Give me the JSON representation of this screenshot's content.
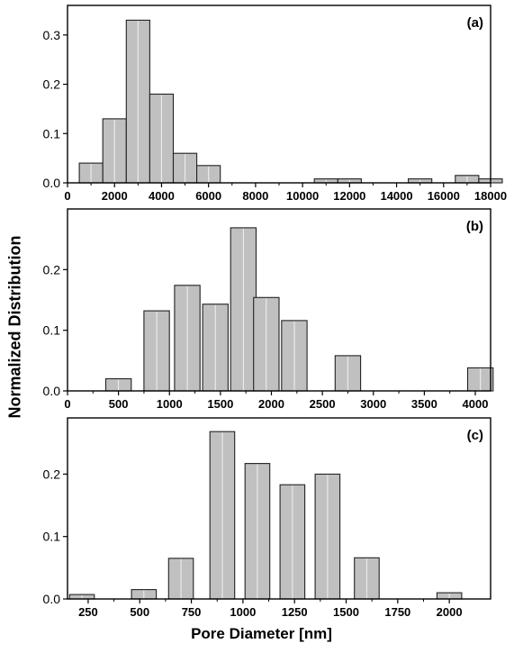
{
  "figure": {
    "ylabel": "Normalized Distribution",
    "xlabel": "Pore Diameter [nm]"
  },
  "chart_data": [
    {
      "type": "bar",
      "panel_label": "(a)",
      "bin_width": 1000,
      "x": [
        1000,
        2000,
        3000,
        4000,
        5000,
        6000,
        11000,
        12000,
        15000,
        17000,
        18000
      ],
      "values": [
        0.04,
        0.13,
        0.33,
        0.18,
        0.06,
        0.035,
        0.008,
        0.008,
        0.008,
        0.015,
        0.008
      ],
      "xlim": [
        0,
        18000
      ],
      "ylim": [
        0,
        0.36
      ],
      "xticks": [
        0,
        2000,
        4000,
        6000,
        8000,
        10000,
        12000,
        14000,
        16000,
        18000
      ],
      "yticks": [
        0.0,
        0.1,
        0.2,
        0.3
      ],
      "ytick_labels": [
        "0.0",
        "0.1",
        "0.2",
        "0.3"
      ],
      "grid": false,
      "legend": "none"
    },
    {
      "type": "bar",
      "panel_label": "(b)",
      "bin_width": 250,
      "x": [
        500,
        875,
        1175,
        1450,
        1725,
        1950,
        2225,
        2750,
        4050
      ],
      "values": [
        0.02,
        0.132,
        0.174,
        0.143,
        0.269,
        0.154,
        0.116,
        0.058,
        0.038
      ],
      "xlim": [
        0,
        4150
      ],
      "ylim": [
        0,
        0.3
      ],
      "xticks": [
        0,
        500,
        1000,
        1500,
        2000,
        2500,
        3000,
        3500,
        4000
      ],
      "yticks": [
        0.0,
        0.1,
        0.2
      ],
      "ytick_labels": [
        "0.0",
        "0.1",
        "0.2"
      ],
      "grid": false,
      "legend": "none"
    },
    {
      "type": "bar",
      "panel_label": "(c)",
      "bin_width": 120,
      "x": [
        220,
        520,
        700,
        900,
        1070,
        1240,
        1410,
        1600,
        2000
      ],
      "values": [
        0.007,
        0.015,
        0.065,
        0.268,
        0.217,
        0.183,
        0.2,
        0.066,
        0.01
      ],
      "xlim": [
        150,
        2200
      ],
      "ylim": [
        0,
        0.29
      ],
      "xticks": [
        250,
        500,
        750,
        1000,
        1250,
        1500,
        1750,
        2000
      ],
      "yticks": [
        0.0,
        0.1,
        0.2
      ],
      "ytick_labels": [
        "0.0",
        "0.1",
        "0.2"
      ],
      "grid": false,
      "legend": "none"
    }
  ]
}
